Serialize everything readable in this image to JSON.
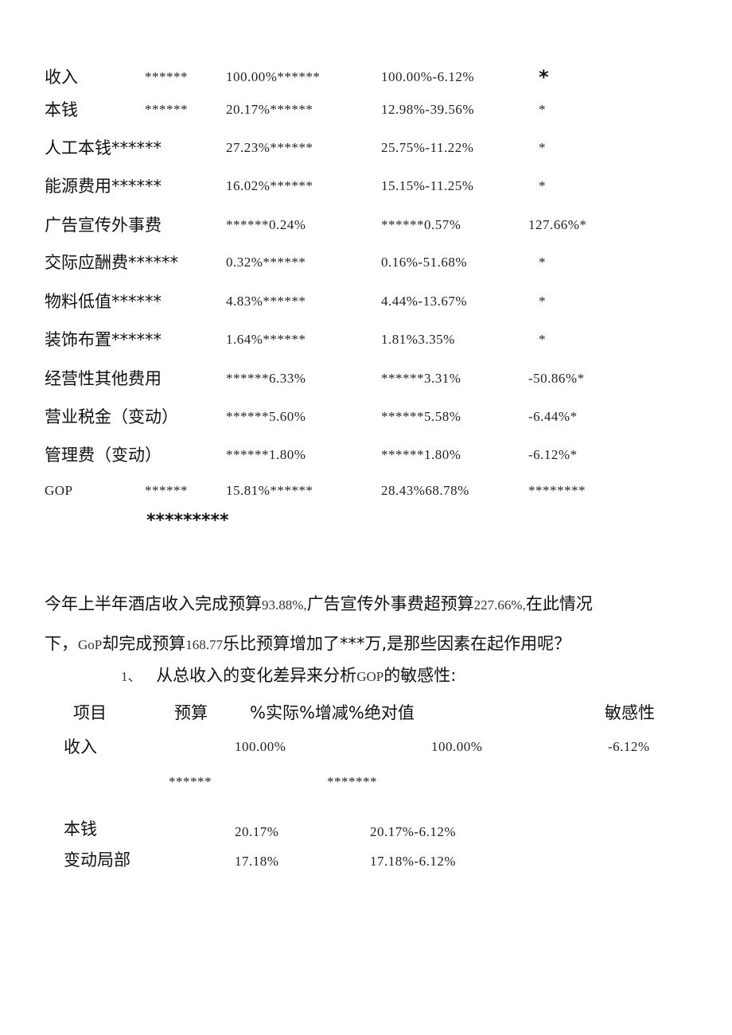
{
  "table1": {
    "rows": [
      {
        "label": "收入",
        "c1": "******",
        "c2": "100.00%******",
        "c3": "100.00%-6.12%",
        "c4": "*"
      },
      {
        "label": "本钱",
        "c1": "******",
        "c2": "20.17%******",
        "c3": "12.98%-39.56%",
        "c4": "*"
      },
      {
        "label": "人工本钱******",
        "c1": "",
        "c2": "27.23%******",
        "c3": "25.75%-11.22%",
        "c4": "*"
      },
      {
        "label": "能源费用******",
        "c1": "",
        "c2": "16.02%******",
        "c3": "15.15%-11.25%",
        "c4": "*"
      },
      {
        "label": "广告宣传外事费",
        "c1": "",
        "c2": "******0.24%",
        "c3": "******0.57%",
        "c4": "127.66%*"
      },
      {
        "label": "交际应酬费******",
        "c1": "",
        "c2": "0.32%******",
        "c3": "0.16%-51.68%",
        "c4": "*"
      },
      {
        "label": "物料低值******",
        "c1": "",
        "c2": "4.83%******",
        "c3": "4.44%-13.67%",
        "c4": "*"
      },
      {
        "label": "装饰布置******",
        "c1": "",
        "c2": "1.64%******",
        "c3": "1.81%3.35%",
        "c4": "*"
      },
      {
        "label": "经营性其他费用",
        "c1": "",
        "c2": "******6.33%",
        "c3": "******3.31%",
        "c4": "-50.86%*"
      },
      {
        "label": "营业税金（变动）",
        "c1": "",
        "c2": "******5.60%",
        "c3": "******5.58%",
        "c4": "-6.44%*"
      },
      {
        "label": "管理费（变动）",
        "c1": "",
        "c2": "******1.80%",
        "c3": "******1.80%",
        "c4": "-6.12%*"
      },
      {
        "label": "GOP",
        "c1": "******",
        "c2": "15.81%******",
        "c3": "28.43%68.78%",
        "c4": "********"
      }
    ],
    "trailing_stars": "*********"
  },
  "paragraph": {
    "line1": [
      {
        "t": "今年上半年酒店收入完成预算",
        "n": false
      },
      {
        "t": "93.88%,",
        "n": true
      },
      {
        "t": "广告宣传外事费超预算",
        "n": false
      },
      {
        "t": "227.66%,",
        "n": true
      },
      {
        "t": "在此情况",
        "n": false
      }
    ],
    "line2": [
      {
        "t": "下，",
        "n": false
      },
      {
        "t": "GoP",
        "n": true
      },
      {
        "t": "却完成预算",
        "n": false
      },
      {
        "t": "168.77",
        "n": true
      },
      {
        "t": "乐比预算增加了***万,是那些因素在起作用呢？",
        "n": false
      }
    ]
  },
  "section1": {
    "num": "1、",
    "title_a": "从总收入的变化差异来分析",
    "title_gop": "GOP",
    "title_b": "的敏感性:"
  },
  "table2": {
    "headers": {
      "item": "项目",
      "budget": "预算",
      "middle": "%实际%增减%绝对值",
      "sensitivity": "敏感性"
    },
    "rows": [
      {
        "label": "收入",
        "a": "100.00%",
        "b": "100.00%",
        "c": "-6.12%"
      },
      {
        "label": "本钱",
        "a": "20.17%",
        "b": "20.17%-6.12%",
        "c": ""
      },
      {
        "label": "变动局部",
        "a": "17.18%",
        "b": "17.18%-6.12%",
        "c": ""
      }
    ],
    "stars_a": "******",
    "stars_b": "*******"
  }
}
